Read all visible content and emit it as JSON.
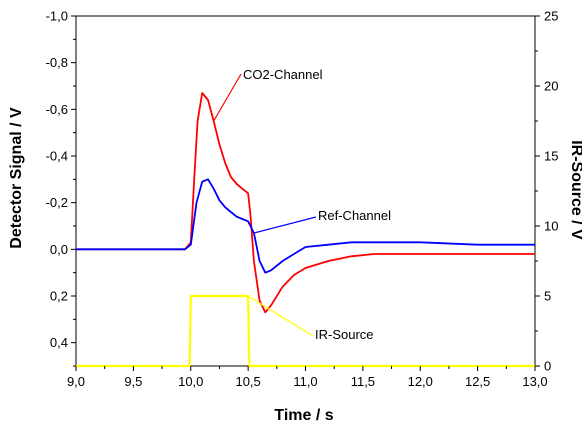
{
  "chart_data": {
    "type": "line",
    "xlabel": "Time / s",
    "ylabel_left": "Detector Signal / V",
    "ylabel_right": "IR-Source / V",
    "xlim": [
      9.0,
      13.0
    ],
    "ylim_left": [
      -1.0,
      0.5
    ],
    "left_axis_inverted": true,
    "ylim_right": [
      0,
      25
    ],
    "x_ticks": [
      "9,0",
      "9,5",
      "10,0",
      "10,5",
      "11,0",
      "11,5",
      "12,0",
      "12,5",
      "13,0"
    ],
    "y_left_ticks": [
      "-1,0",
      "-0,8",
      "-0,6",
      "-0,4",
      "-0,2",
      "0,0",
      "0,2",
      "0,4"
    ],
    "y_right_ticks": [
      "0",
      "5",
      "10",
      "15",
      "20",
      "25"
    ],
    "grid": false,
    "series": [
      {
        "name": "CO2-Channel",
        "axis": "left",
        "color": "#ff0000",
        "x": [
          9.0,
          9.5,
          9.95,
          10.0,
          10.03,
          10.06,
          10.1,
          10.15,
          10.2,
          10.25,
          10.3,
          10.35,
          10.4,
          10.45,
          10.5,
          10.52,
          10.55,
          10.6,
          10.65,
          10.7,
          10.8,
          10.9,
          11.0,
          11.2,
          11.4,
          11.6,
          11.8,
          12.0,
          12.5,
          13.0
        ],
        "y": [
          0.0,
          0.0,
          0.0,
          -0.03,
          -0.3,
          -0.55,
          -0.67,
          -0.64,
          -0.55,
          -0.45,
          -0.37,
          -0.31,
          -0.28,
          -0.26,
          -0.24,
          -0.15,
          0.05,
          0.22,
          0.27,
          0.24,
          0.16,
          0.11,
          0.08,
          0.05,
          0.03,
          0.02,
          0.02,
          0.02,
          0.02,
          0.02
        ]
      },
      {
        "name": "Ref-Channel",
        "axis": "left",
        "color": "#0000ff",
        "x": [
          9.0,
          9.5,
          9.95,
          10.0,
          10.05,
          10.1,
          10.15,
          10.2,
          10.25,
          10.3,
          10.35,
          10.4,
          10.45,
          10.5,
          10.55,
          10.6,
          10.65,
          10.7,
          10.8,
          10.9,
          11.0,
          11.2,
          11.4,
          11.6,
          11.8,
          12.0,
          12.5,
          13.0
        ],
        "y": [
          0.0,
          0.0,
          0.0,
          -0.02,
          -0.2,
          -0.29,
          -0.3,
          -0.26,
          -0.21,
          -0.18,
          -0.16,
          -0.14,
          -0.13,
          -0.12,
          -0.07,
          0.05,
          0.1,
          0.09,
          0.05,
          0.02,
          -0.01,
          -0.02,
          -0.03,
          -0.03,
          -0.03,
          -0.03,
          -0.02,
          -0.02
        ]
      },
      {
        "name": "IR-Source",
        "axis": "right",
        "color": "#ffff00",
        "x": [
          9.0,
          9.99,
          10.0,
          10.5,
          10.51,
          13.0
        ],
        "y": [
          0,
          0,
          5,
          5,
          0,
          0
        ]
      }
    ],
    "annotations": [
      {
        "text": "CO2-Channel",
        "target_series": "CO2-Channel"
      },
      {
        "text": "Ref-Channel",
        "target_series": "Ref-Channel"
      },
      {
        "text": "IR-Source",
        "target_series": "IR-Source"
      }
    ]
  }
}
